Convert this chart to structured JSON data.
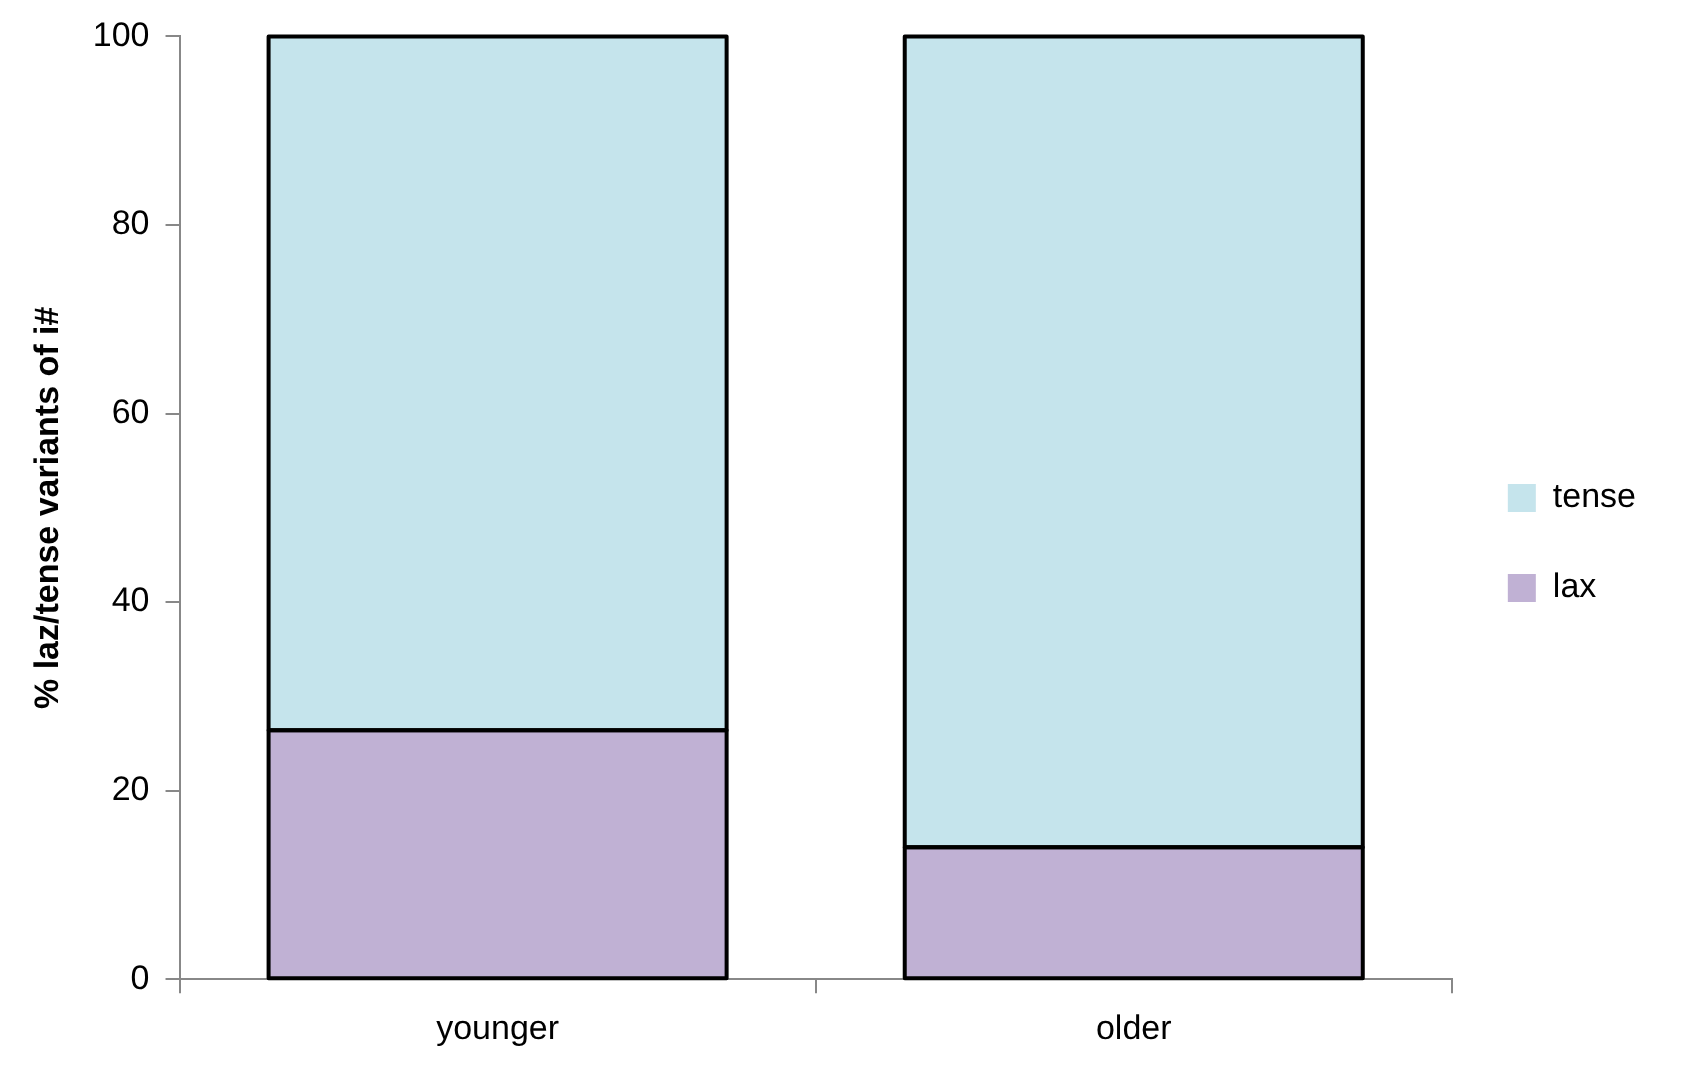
{
  "chart_data": {
    "type": "bar",
    "stacked": true,
    "ylabel": "% laz/tense variants of i#",
    "categories": [
      "younger",
      "older"
    ],
    "series": [
      {
        "name": "lax",
        "color": "#c0b1d4",
        "values": [
          26.4,
          14.0
        ]
      },
      {
        "name": "tense",
        "color": "#c5e4ec",
        "values": [
          73.6,
          86.0
        ]
      }
    ],
    "ylim": [
      0,
      100
    ],
    "yticks": [
      0,
      20,
      40,
      60,
      80,
      100
    ],
    "grid": false,
    "legend": "right"
  }
}
